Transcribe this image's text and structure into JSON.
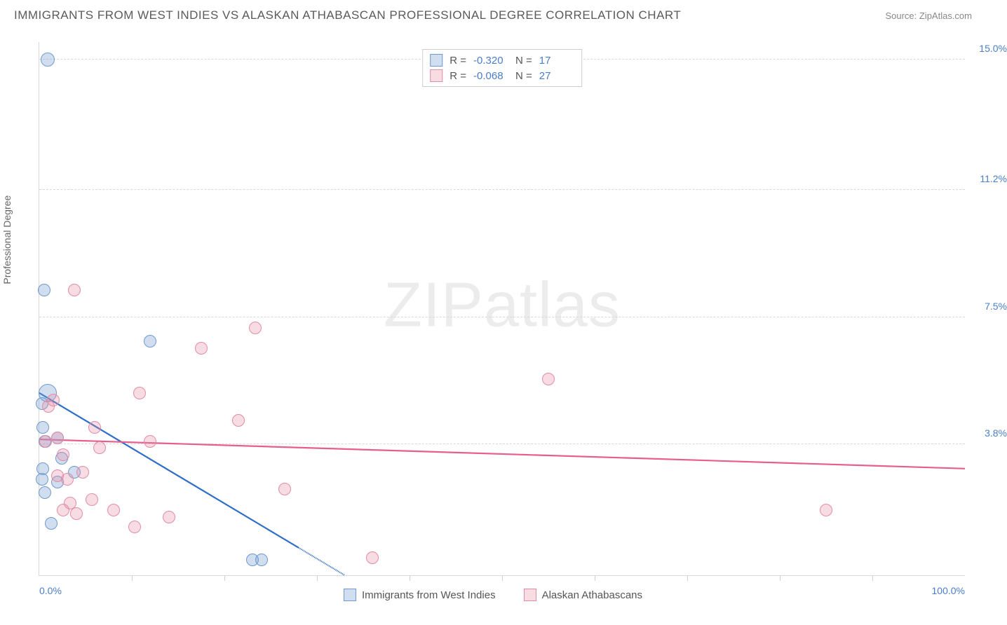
{
  "title": "IMMIGRANTS FROM WEST INDIES VS ALASKAN ATHABASCAN PROFESSIONAL DEGREE CORRELATION CHART",
  "source_prefix": "Source: ",
  "source_name": "ZipAtlas.com",
  "watermark": "ZIPatlas",
  "chart": {
    "type": "scatter",
    "ylabel": "Professional Degree",
    "xlim": [
      0,
      100
    ],
    "ylim": [
      0,
      15.5
    ],
    "xticks_minor": [
      10,
      20,
      30,
      40,
      50,
      60,
      70,
      80,
      90
    ],
    "xticks_labeled": [
      {
        "v": 0,
        "label": "0.0%",
        "align": "left"
      },
      {
        "v": 100,
        "label": "100.0%",
        "align": "right"
      }
    ],
    "yticks": [
      {
        "v": 3.8,
        "label": "3.8%"
      },
      {
        "v": 7.5,
        "label": "7.5%"
      },
      {
        "v": 11.2,
        "label": "11.2%"
      },
      {
        "v": 15.0,
        "label": "15.0%"
      }
    ],
    "colors": {
      "series1_fill": "rgba(120,160,212,0.35)",
      "series1_stroke": "#6f99cf",
      "series1_line": "#2f6fc7",
      "series2_fill": "rgba(231,140,165,0.30)",
      "series2_stroke": "#e48ba4",
      "series2_line": "#e75d8b",
      "axis_text": "#4a7ec9",
      "grid": "#d9d9d9"
    },
    "point_radius": 9,
    "series": [
      {
        "name": "Immigrants from West Indies",
        "color_key": "series1",
        "R_label": "R =",
        "R_value": "-0.320",
        "N_label": "N =",
        "N_value": "17",
        "trend": {
          "x1": 0,
          "y1": 5.3,
          "x2": 33,
          "y2": 0,
          "dash_after_x": 28
        },
        "points": [
          {
            "x": 0.9,
            "y": 15.0,
            "r": 10
          },
          {
            "x": 0.5,
            "y": 8.3,
            "r": 9
          },
          {
            "x": 12.0,
            "y": 6.8,
            "r": 9
          },
          {
            "x": 0.9,
            "y": 5.3,
            "r": 13
          },
          {
            "x": 0.3,
            "y": 5.0,
            "r": 9
          },
          {
            "x": 0.4,
            "y": 4.3,
            "r": 9
          },
          {
            "x": 2.0,
            "y": 4.0,
            "r": 9
          },
          {
            "x": 0.6,
            "y": 3.9,
            "r": 9
          },
          {
            "x": 2.4,
            "y": 3.4,
            "r": 9
          },
          {
            "x": 0.4,
            "y": 3.1,
            "r": 9
          },
          {
            "x": 3.8,
            "y": 3.0,
            "r": 9
          },
          {
            "x": 0.3,
            "y": 2.8,
            "r": 9
          },
          {
            "x": 2.0,
            "y": 2.7,
            "r": 9
          },
          {
            "x": 0.6,
            "y": 2.4,
            "r": 9
          },
          {
            "x": 1.3,
            "y": 1.5,
            "r": 9
          },
          {
            "x": 23.0,
            "y": 0.45,
            "r": 9
          },
          {
            "x": 24.0,
            "y": 0.45,
            "r": 9
          }
        ]
      },
      {
        "name": "Alaskan Athabascans",
        "color_key": "series2",
        "R_label": "R =",
        "R_value": "-0.068",
        "N_label": "N =",
        "N_value": "27",
        "trend": {
          "x1": 0,
          "y1": 3.95,
          "x2": 100,
          "y2": 3.1
        },
        "points": [
          {
            "x": 3.8,
            "y": 8.3,
            "r": 9
          },
          {
            "x": 23.3,
            "y": 7.2,
            "r": 9
          },
          {
            "x": 17.5,
            "y": 6.6,
            "r": 9
          },
          {
            "x": 55.0,
            "y": 5.7,
            "r": 9
          },
          {
            "x": 10.8,
            "y": 5.3,
            "r": 9
          },
          {
            "x": 1.5,
            "y": 5.1,
            "r": 9
          },
          {
            "x": 21.5,
            "y": 4.5,
            "r": 9
          },
          {
            "x": 6.0,
            "y": 4.3,
            "r": 9
          },
          {
            "x": 2.0,
            "y": 4.0,
            "r": 9
          },
          {
            "x": 0.7,
            "y": 3.9,
            "r": 9
          },
          {
            "x": 12.0,
            "y": 3.9,
            "r": 9
          },
          {
            "x": 2.6,
            "y": 3.5,
            "r": 9
          },
          {
            "x": 4.7,
            "y": 3.0,
            "r": 9
          },
          {
            "x": 2.0,
            "y": 2.9,
            "r": 9
          },
          {
            "x": 3.0,
            "y": 2.8,
            "r": 9
          },
          {
            "x": 26.5,
            "y": 2.5,
            "r": 9
          },
          {
            "x": 5.7,
            "y": 2.2,
            "r": 9
          },
          {
            "x": 3.3,
            "y": 2.1,
            "r": 9
          },
          {
            "x": 2.6,
            "y": 1.9,
            "r": 9
          },
          {
            "x": 8.0,
            "y": 1.9,
            "r": 9
          },
          {
            "x": 4.0,
            "y": 1.8,
            "r": 9
          },
          {
            "x": 14.0,
            "y": 1.7,
            "r": 9
          },
          {
            "x": 85.0,
            "y": 1.9,
            "r": 9
          },
          {
            "x": 10.3,
            "y": 1.4,
            "r": 9
          },
          {
            "x": 36.0,
            "y": 0.5,
            "r": 9
          },
          {
            "x": 1.0,
            "y": 4.9,
            "r": 9
          },
          {
            "x": 6.5,
            "y": 3.7,
            "r": 9
          }
        ]
      }
    ]
  }
}
